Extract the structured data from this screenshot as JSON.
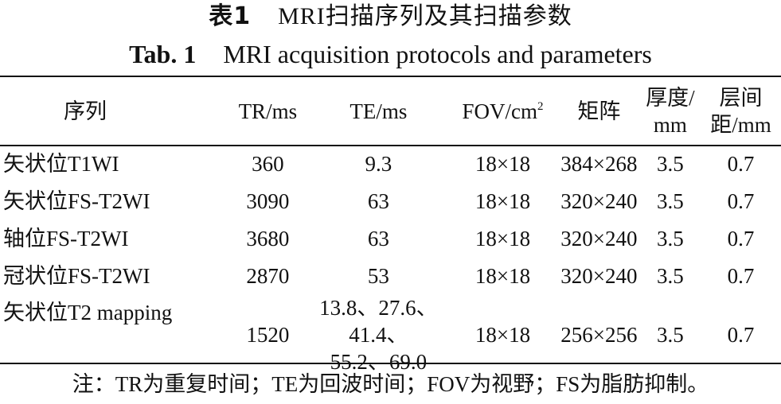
{
  "title_cn": {
    "label": "表1",
    "text": "MRI扫描序列及其扫描参数"
  },
  "title_en": {
    "label": "Tab. 1",
    "text": "MRI acquisition protocols and parameters"
  },
  "headers": {
    "sequence": "序列",
    "tr": "TR/ms",
    "te": "TE/ms",
    "fov": "FOV/cm",
    "fov_sup": "2",
    "matrix": "矩阵",
    "thickness_1": "厚度/",
    "thickness_2": "mm",
    "gap_1": "层间",
    "gap_2": "距/mm"
  },
  "rows": [
    {
      "sequence": "矢状位T1WI",
      "tr": "360",
      "te": "9.3",
      "fov": "18×18",
      "matrix": "384×268",
      "thickness": "3.5",
      "gap": "0.7"
    },
    {
      "sequence": "矢状位FS-T2WI",
      "tr": "3090",
      "te": "63",
      "fov": "18×18",
      "matrix": "320×240",
      "thickness": "3.5",
      "gap": "0.7"
    },
    {
      "sequence": "轴位FS-T2WI",
      "tr": "3680",
      "te": "63",
      "fov": "18×18",
      "matrix": "320×240",
      "thickness": "3.5",
      "gap": "0.7"
    },
    {
      "sequence": "冠状位FS-T2WI",
      "tr": "2870",
      "te": "53",
      "fov": "18×18",
      "matrix": "320×240",
      "thickness": "3.5",
      "gap": "0.7"
    },
    {
      "sequence": "矢状位T2 mapping",
      "tr": "1520",
      "te_line1": "13.8、27.6、41.4、",
      "te_line2": "55.2、69.0",
      "fov": "18×18",
      "matrix": "256×256",
      "thickness": "3.5",
      "gap": "0.7"
    }
  ],
  "note": "注：TR为重复时间；TE为回波时间；FOV为视野；FS为脂肪抑制。"
}
